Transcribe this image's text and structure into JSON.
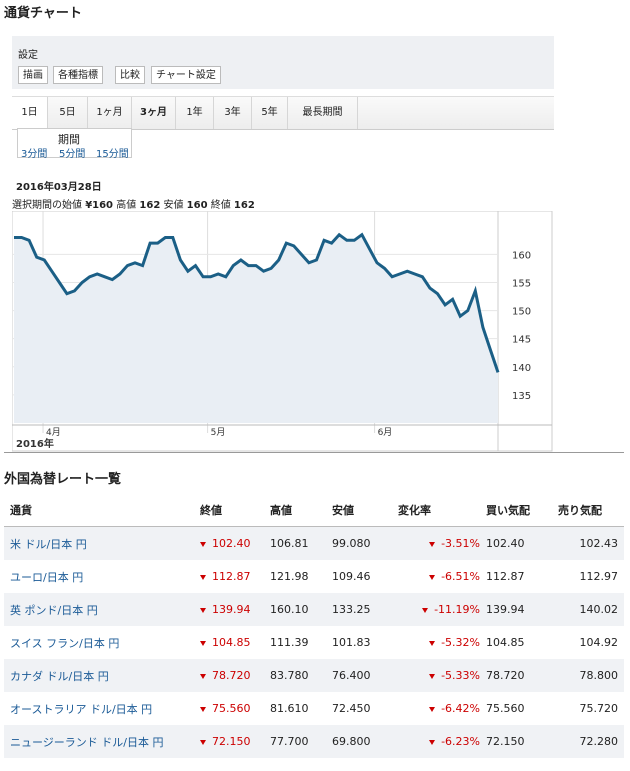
{
  "page_title": "通貨チャート",
  "toolbar": {
    "settings_label": "設定",
    "buttons": [
      "描画",
      "各種指標",
      "比較",
      "チャート設定"
    ]
  },
  "ranges": [
    "1日",
    "5日",
    "1ヶ月",
    "3ヶ月",
    "1年",
    "3年",
    "5年",
    "最長期間"
  ],
  "period_popup": {
    "title": "期間",
    "options": [
      "3分間",
      "5分間",
      "15分間"
    ]
  },
  "chart_info": {
    "date": "2016年03月28日",
    "summary_prefix": "選択期間の",
    "open_label": "始値",
    "open_value": "¥160",
    "high_label": "高値",
    "high_value": "162",
    "low_label": "安値",
    "low_value": "160",
    "close_label": "終値",
    "close_value": "162"
  },
  "chart_data": {
    "type": "area",
    "x_tick_labels": [
      "4月",
      "5月",
      "6月"
    ],
    "year_label": "2016年",
    "y_ticks": [
      135,
      140,
      145,
      150,
      155,
      160
    ],
    "ylim": [
      130,
      167
    ],
    "series": [
      {
        "values": [
          163,
          163,
          162.5,
          159.5,
          159,
          157,
          155,
          153,
          153.5,
          155,
          156,
          156.5,
          156,
          155.5,
          156.5,
          158,
          158.5,
          158,
          162,
          162,
          163,
          163,
          159,
          157,
          158,
          156,
          156,
          156.5,
          156,
          158,
          159,
          158,
          158,
          157,
          157.5,
          159,
          162,
          161.5,
          160,
          158.5,
          159,
          162.5,
          162,
          163.5,
          162.5,
          162.5,
          163.5,
          161,
          158.5,
          157.5,
          156,
          156.5,
          157,
          156.5,
          156,
          154,
          153,
          151,
          152,
          149,
          150,
          153.5,
          147,
          143,
          139
        ]
      }
    ]
  },
  "rates_table": {
    "title": "外国為替レート一覧",
    "headers": [
      "通貨",
      "終値",
      "高値",
      "安値",
      "変化率",
      "買い気配",
      "売り気配"
    ],
    "rows": [
      {
        "name": "米 ドル/日本 円",
        "close": "102.40",
        "high": "106.81",
        "low": "99.080",
        "change": "-3.51%",
        "bid": "102.40",
        "ask": "102.43"
      },
      {
        "name": "ユーロ/日本 円",
        "close": "112.87",
        "high": "121.98",
        "low": "109.46",
        "change": "-6.51%",
        "bid": "112.87",
        "ask": "112.97"
      },
      {
        "name": "英 ポンド/日本 円",
        "close": "139.94",
        "high": "160.10",
        "low": "133.25",
        "change": "-11.19%",
        "bid": "139.94",
        "ask": "140.02"
      },
      {
        "name": "スイス フラン/日本 円",
        "close": "104.85",
        "high": "111.39",
        "low": "101.83",
        "change": "-5.32%",
        "bid": "104.85",
        "ask": "104.92"
      },
      {
        "name": "カナダ ドル/日本 円",
        "close": "78.720",
        "high": "83.780",
        "low": "76.400",
        "change": "-5.33%",
        "bid": "78.720",
        "ask": "78.800"
      },
      {
        "name": "オーストラリア ドル/日本 円",
        "close": "75.560",
        "high": "81.610",
        "low": "72.450",
        "change": "-6.42%",
        "bid": "75.560",
        "ask": "75.720"
      },
      {
        "name": "ニュージーランド ドル/日本 円",
        "close": "72.150",
        "high": "77.700",
        "low": "69.800",
        "change": "-6.23%",
        "bid": "72.150",
        "ask": "72.280"
      }
    ]
  },
  "colors": {
    "line": "#1b5f86",
    "area": "#e9eef4",
    "negative": "#cc0000",
    "link": "#1a5a96"
  }
}
